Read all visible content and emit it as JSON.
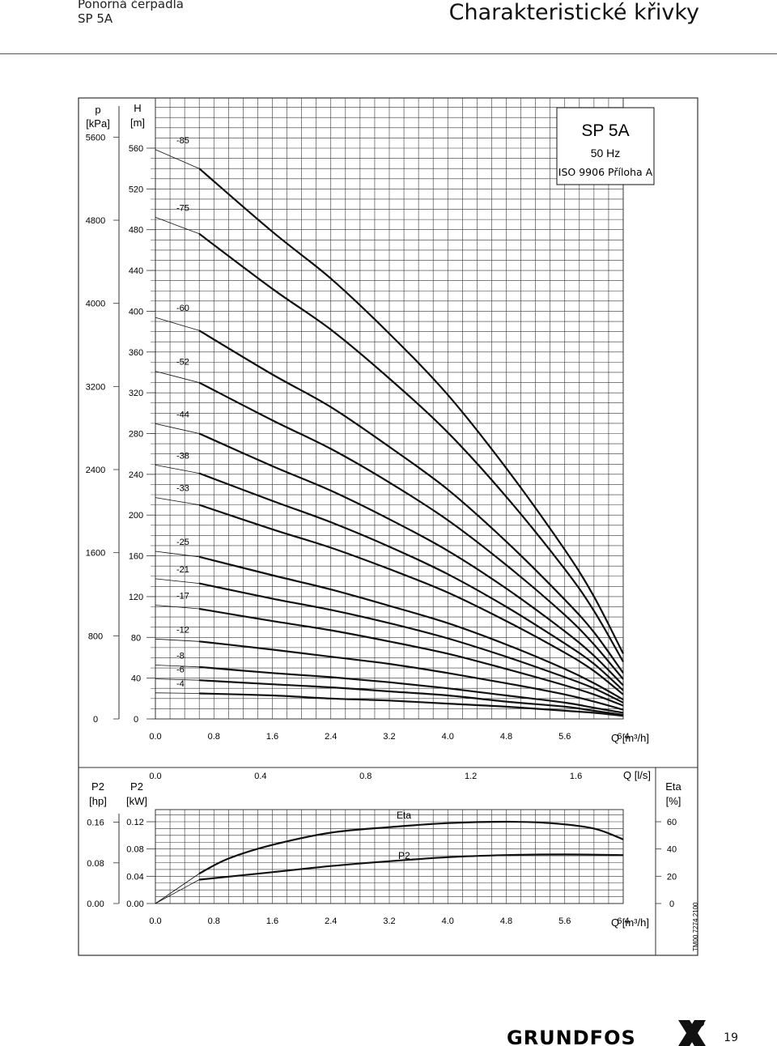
{
  "header": {
    "product_line1": "Ponorná čerpadla",
    "product_line2": "SP 5A",
    "title": "Charakteristické křivky"
  },
  "legend_box": {
    "model": "SP 5A",
    "frequency": "50 Hz",
    "standard": "ISO 9906 Příloha A"
  },
  "footer": {
    "brand": "GRUNDFOS",
    "page_number": "19",
    "drawing_code": "TM00 7274 2100"
  },
  "colors": {
    "curve": "#111111",
    "grid": "#333333"
  },
  "chart_data": [
    {
      "type": "line",
      "xlabel": "Q [m³/h]",
      "x_ticks": [
        "0.0",
        "0.8",
        "1.6",
        "2.4",
        "3.2",
        "4.0",
        "4.8",
        "5.6",
        "6.4"
      ],
      "xlim": [
        0,
        6.4
      ],
      "ylabel_left_outer": "p [kPa]",
      "ylabel_left_outer_lines": [
        "p",
        "[kPa]"
      ],
      "p_ticks": [
        "5600",
        "4800",
        "4000",
        "3200",
        "2400",
        "1600",
        "800",
        "0"
      ],
      "ylabel_left_inner": "H [m]",
      "ylabel_left_inner_lines": [
        "H",
        "[m]"
      ],
      "h_ticks": [
        "560",
        "520",
        "480",
        "440",
        "400",
        "360",
        "320",
        "280",
        "240",
        "200",
        "160",
        "120",
        "80",
        "40",
        "0"
      ],
      "ylim": [
        0,
        570
      ],
      "grid": true,
      "series": [
        {
          "name": "-85",
          "x": [
            0.6,
            1.6,
            2.4,
            3.2,
            4.0,
            4.8,
            5.6,
            6.0,
            6.4
          ],
          "y": [
            540,
            478,
            432,
            378,
            318,
            246,
            166,
            120,
            64
          ]
        },
        {
          "name": "-75",
          "x": [
            0.6,
            1.6,
            2.4,
            3.2,
            4.0,
            4.8,
            5.6,
            6.0,
            6.4
          ],
          "y": [
            476,
            422,
            382,
            334,
            281,
            218,
            147,
            106,
            56
          ]
        },
        {
          "name": "-60",
          "x": [
            0.6,
            1.6,
            2.4,
            3.2,
            4.0,
            4.8,
            5.6,
            6.0,
            6.4
          ],
          "y": [
            381,
            338,
            306,
            267,
            225,
            174,
            117,
            85,
            45
          ]
        },
        {
          "name": "-52",
          "x": [
            0.6,
            1.6,
            2.4,
            3.2,
            4.0,
            4.8,
            5.6,
            6.0,
            6.4
          ],
          "y": [
            330,
            293,
            265,
            232,
            195,
            151,
            102,
            73,
            39
          ]
        },
        {
          "name": "-44",
          "x": [
            0.6,
            1.6,
            2.4,
            3.2,
            4.0,
            4.8,
            5.6,
            6.0,
            6.4
          ],
          "y": [
            280,
            248,
            224,
            196,
            165,
            128,
            86,
            62,
            33
          ]
        },
        {
          "name": "-38",
          "x": [
            0.6,
            1.6,
            2.4,
            3.2,
            4.0,
            4.8,
            5.6,
            6.0,
            6.4
          ],
          "y": [
            241,
            214,
            193,
            169,
            142,
            110,
            74,
            54,
            28
          ]
        },
        {
          "name": "-33",
          "x": [
            0.6,
            1.6,
            2.4,
            3.2,
            4.0,
            4.8,
            5.6,
            6.0,
            6.4
          ],
          "y": [
            210,
            186,
            168,
            147,
            124,
            96,
            65,
            47,
            24
          ]
        },
        {
          "name": "-25",
          "x": [
            0.6,
            1.6,
            2.4,
            3.2,
            4.0,
            4.8,
            5.6,
            6.0,
            6.4
          ],
          "y": [
            159,
            141,
            127,
            111,
            94,
            73,
            49,
            35,
            19
          ]
        },
        {
          "name": "-21",
          "x": [
            0.6,
            1.6,
            2.4,
            3.2,
            4.0,
            4.8,
            5.6,
            6.0,
            6.4
          ],
          "y": [
            133,
            118,
            107,
            94,
            79,
            61,
            41,
            30,
            16
          ]
        },
        {
          "name": "-17",
          "x": [
            0.6,
            1.6,
            2.4,
            3.2,
            4.0,
            4.8,
            5.6,
            6.0,
            6.4
          ],
          "y": [
            108,
            96,
            87,
            76,
            64,
            49,
            33,
            24,
            13
          ]
        },
        {
          "name": "-12",
          "x": [
            0.6,
            1.6,
            2.4,
            3.2,
            4.0,
            4.8,
            5.6,
            6.0,
            6.4
          ],
          "y": [
            76,
            68,
            61,
            54,
            45,
            35,
            24,
            17,
            9
          ]
        },
        {
          "name": "-8",
          "x": [
            0.6,
            1.6,
            2.4,
            3.2,
            4.0,
            4.8,
            5.6,
            6.0,
            6.4
          ],
          "y": [
            51,
            45,
            41,
            36,
            30,
            23,
            16,
            11,
            6
          ]
        },
        {
          "name": "-6",
          "x": [
            0.6,
            1.6,
            2.4,
            3.2,
            4.0,
            4.8,
            5.6,
            6.0,
            6.4
          ],
          "y": [
            38,
            34,
            31,
            27,
            23,
            17,
            12,
            8,
            4
          ]
        },
        {
          "name": "-4",
          "x": [
            0.6,
            1.6,
            2.4,
            3.2,
            4.0,
            4.8,
            5.6,
            6.0,
            6.4
          ],
          "y": [
            25,
            23,
            20,
            18,
            15,
            12,
            8,
            6,
            3
          ]
        }
      ]
    },
    {
      "type": "line",
      "xlabel": "Q [m³/h]",
      "x_ticks": [
        "0.0",
        "0.8",
        "1.6",
        "2.4",
        "3.2",
        "4.0",
        "4.8",
        "5.6",
        "6.4"
      ],
      "xlim": [
        0,
        6.4
      ],
      "x2label": "Q [l/s]",
      "x2_ticks": [
        "0.0",
        "0.4",
        "0.8",
        "1.2",
        "1.6"
      ],
      "x2lim": [
        0,
        1.78
      ],
      "ylabel_left_outer": "P2 [hp]",
      "ylabel_left_outer_lines": [
        "P2",
        "[hp]"
      ],
      "hp_ticks": [
        "0.16",
        "0.08",
        "0.00"
      ],
      "ylabel_left_inner": "P2 [kW]",
      "ylabel_left_inner_lines": [
        "P2",
        "[kW]"
      ],
      "kw_ticks": [
        "0.12",
        "0.08",
        "0.04",
        "0.00"
      ],
      "ylim": [
        0,
        0.125
      ],
      "ylabel_right": "Eta [%]",
      "ylabel_right_lines": [
        "Eta",
        "[%]"
      ],
      "eta_ticks": [
        "60",
        "40",
        "20",
        "0"
      ],
      "y2lim": [
        0,
        62
      ],
      "grid": true,
      "series": [
        {
          "name": "Eta",
          "axis": "eta",
          "x": [
            0.6,
            1.0,
            1.6,
            2.4,
            3.2,
            4.0,
            4.8,
            5.4,
            6.0,
            6.4
          ],
          "y": [
            22,
            33,
            43,
            52,
            56,
            59,
            60,
            59,
            55,
            47
          ]
        },
        {
          "name": "P2",
          "axis": "kw",
          "x": [
            0.6,
            1.6,
            2.4,
            3.2,
            4.0,
            4.8,
            5.6,
            6.4
          ],
          "y": [
            0.035,
            0.046,
            0.055,
            0.062,
            0.068,
            0.071,
            0.072,
            0.071
          ]
        }
      ]
    }
  ]
}
